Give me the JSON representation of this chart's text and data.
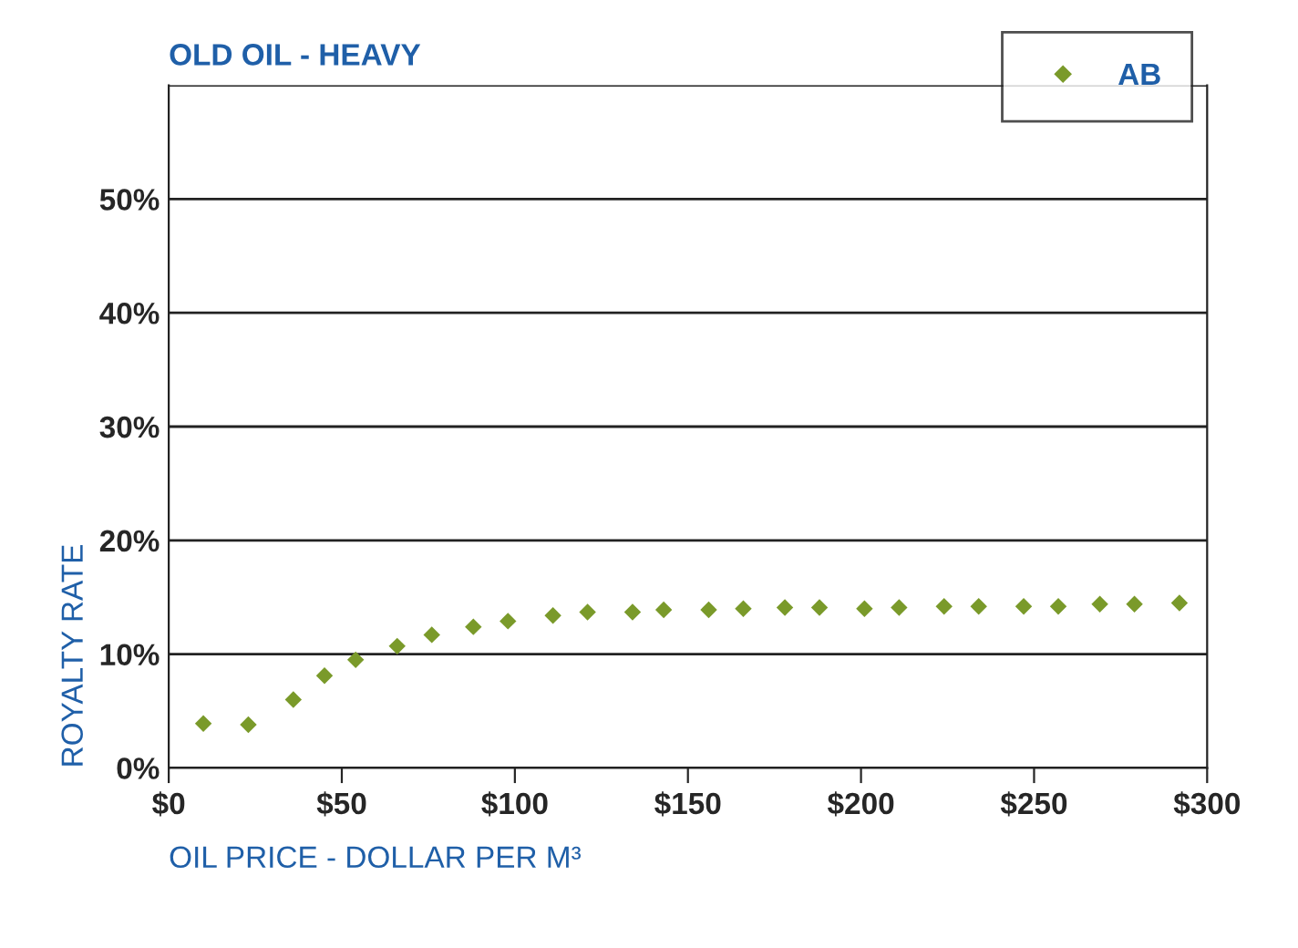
{
  "chart_data": {
    "type": "scatter",
    "title": "OLD OIL - HEAVY",
    "xlabel": "OIL PRICE - DOLLAR PER M³",
    "ylabel": "ROYALTY RATE",
    "series": [
      {
        "name": "AB",
        "color": "#7a9a2a",
        "x": [
          10,
          23,
          36,
          45,
          54,
          66,
          76,
          88,
          98,
          111,
          121,
          134,
          143,
          156,
          166,
          178,
          188,
          201,
          211,
          224,
          234,
          247,
          257,
          269,
          279,
          292
        ],
        "values": [
          3.9,
          3.8,
          6.0,
          8.1,
          9.5,
          10.7,
          11.7,
          12.4,
          12.9,
          13.4,
          13.7,
          13.7,
          13.9,
          13.9,
          14.0,
          14.1,
          14.1,
          14.0,
          14.1,
          14.2,
          14.2,
          14.2,
          14.2,
          14.4,
          14.4,
          14.5
        ]
      }
    ],
    "xlim": [
      0,
      300
    ],
    "xticks": [
      {
        "value": 0,
        "label": "$0"
      },
      {
        "value": 50,
        "label": "$50"
      },
      {
        "value": 100,
        "label": "$100"
      },
      {
        "value": 150,
        "label": "$150"
      },
      {
        "value": 200,
        "label": "$200"
      },
      {
        "value": 250,
        "label": "$250"
      },
      {
        "value": 300,
        "label": "$300"
      }
    ],
    "ylim": [
      0,
      60
    ],
    "yticks": [
      {
        "value": 0,
        "label": "0%"
      },
      {
        "value": 10,
        "label": "10%"
      },
      {
        "value": 20,
        "label": "20%"
      },
      {
        "value": 30,
        "label": "30%"
      },
      {
        "value": 40,
        "label": "40%"
      },
      {
        "value": 50,
        "label": "50%"
      },
      {
        "value": 60,
        "label": null
      }
    ],
    "grid": "y",
    "legend": "top right",
    "marker": "diamond"
  }
}
